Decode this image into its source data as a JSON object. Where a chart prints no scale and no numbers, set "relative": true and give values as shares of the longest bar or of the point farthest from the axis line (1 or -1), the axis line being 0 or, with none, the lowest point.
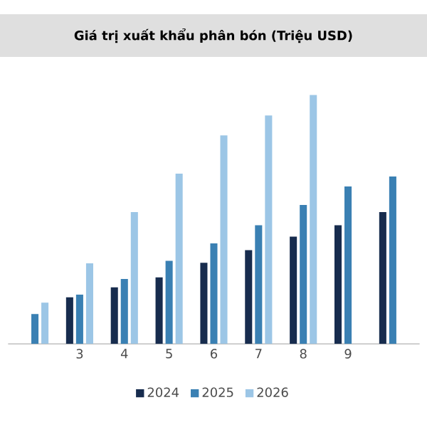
{
  "chart_data": {
    "type": "bar",
    "title": "Giá trị xuất khẩu phân bón (Triệu USD)",
    "relative": true,
    "legend": "bottom",
    "categories": [
      null,
      "3",
      "4",
      "5",
      "6",
      "7",
      "8",
      "9",
      null
    ],
    "series": [
      {
        "name": "2024",
        "color": "#172c4e",
        "values": [
          null,
          0.187,
          0.227,
          0.267,
          0.326,
          0.377,
          0.431,
          0.477,
          0.53
        ]
      },
      {
        "name": "2025",
        "color": "#3a80b3",
        "values": [
          0.12,
          0.198,
          0.261,
          0.334,
          0.404,
          0.477,
          0.558,
          0.633,
          0.673
        ]
      },
      {
        "name": "2026",
        "color": "#9cc6e6",
        "values": [
          0.166,
          0.324,
          0.53,
          0.684,
          0.838,
          0.918,
          1,
          null,
          null
        ]
      }
    ]
  }
}
